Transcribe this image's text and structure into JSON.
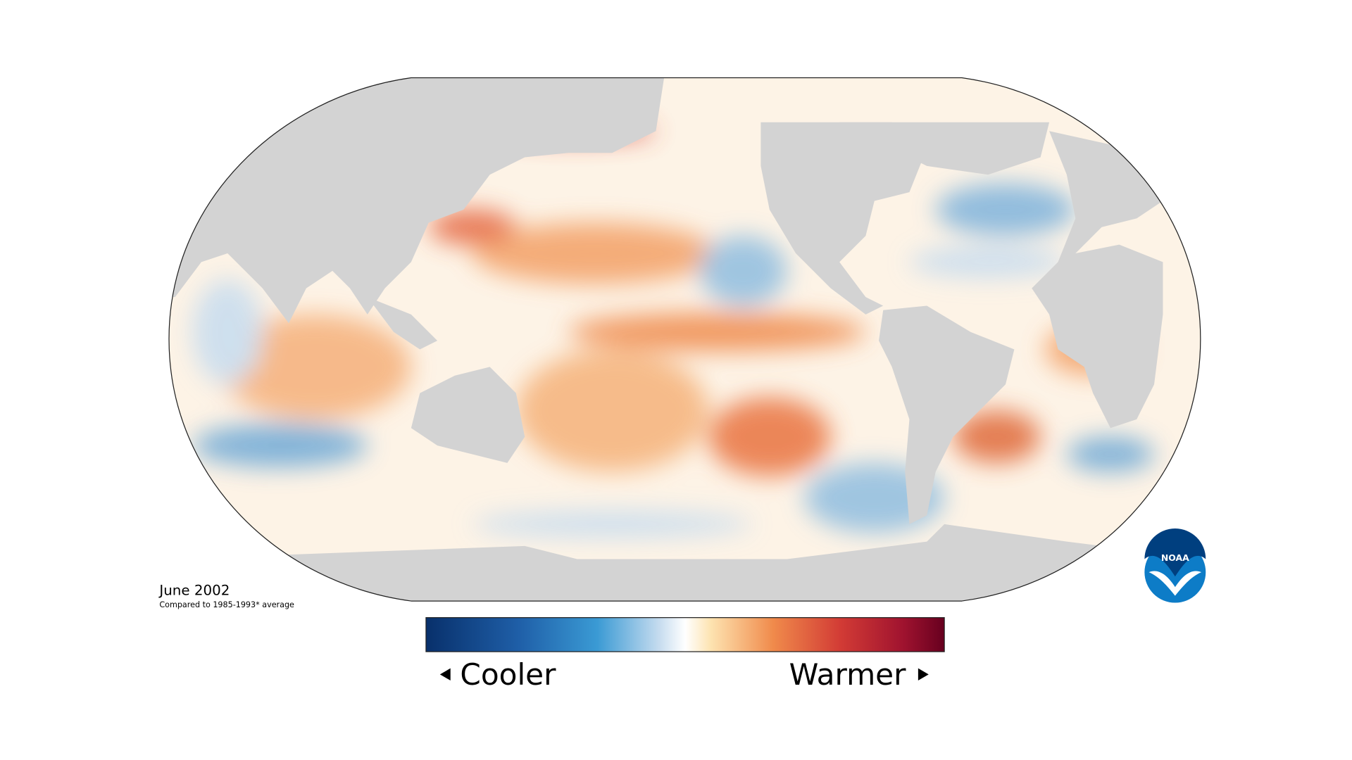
{
  "title": "June 2002",
  "subtitle": "Compared to 1985-1993* average",
  "legend": {
    "low_label": "Cooler",
    "high_label": "Warmer"
  },
  "logo": {
    "text": "NOAA"
  }
}
